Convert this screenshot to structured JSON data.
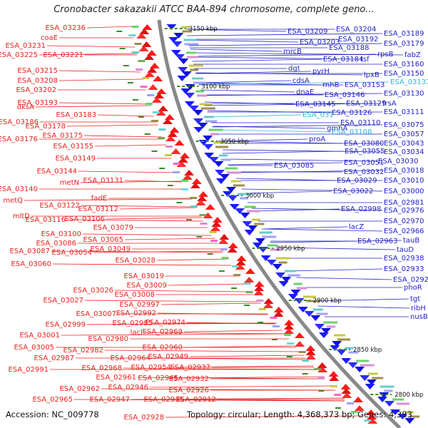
{
  "title": "Cronobacter sakazakii ATCC BAA-894 chromosome, complete geno...",
  "ticks": [
    "3150 kbp",
    "3100 kbp",
    "3050 kbp",
    "3000 kbp",
    "2950 kbp",
    "2900 kbp",
    "2850 kbp",
    "2800 kbp"
  ],
  "left_labels": [
    "ESA_03236",
    "coaE",
    "ESA_03231",
    "ESA_03225",
    "ESA_03221",
    "ESA_03215",
    "ESA_03208",
    "ESA_03202",
    "ESA_03193",
    "dksA",
    "ESA_03186",
    "ESA_03183",
    "ESA_03178",
    "ESA_03176",
    "ESA_03175",
    "ESA_03155",
    "ESA_03149",
    "ESA_03144",
    "metN",
    "ESA_03140",
    "ESA_03131",
    "metQ",
    "fadE",
    "ESA_03122",
    "ESA_03112",
    "mltD",
    "ESA_03116",
    "ESA_03106",
    "ESA_03079",
    "ESA_03100",
    "ESA_03065",
    "ESA_03086",
    "ESA_03087",
    "ESA_03054",
    "ESA_03049",
    "ESA_03060",
    "ESA_03028",
    "ESA_03019",
    "ESA_03026",
    "ESA_03009",
    "ESA_03008",
    "ESA_03027",
    "ESA_02997",
    "ESA_03007",
    "ESA_02992",
    "ESA_02999",
    "ESA_02985",
    "ESA_02974",
    "ESA_03001",
    "ESA_02980",
    "lacI",
    "ESA_02969",
    "ESA_03005",
    "ESA_02982",
    "ESA_02960",
    "ESA_02987",
    "ESA_02964",
    "ESA_02949",
    "ESA_02991",
    "ESA_02968",
    "ESA_02954",
    "ESA_02937",
    "ESA_02961",
    "ESA_02945",
    "ESA_02932",
    "ESA_02962",
    "ESA_02946",
    "ESA_02926",
    "ESA_02965",
    "ESA_02947",
    "ESA_02935",
    "ESA_02912",
    "ESA_02928"
  ],
  "right_labels": [
    "ESA_03209",
    "ESA_03204",
    "ESA_03189",
    "ESA_03203",
    "ESA_03192",
    "ESA_03179",
    "mrcB",
    "ESA_03188",
    "rpsB",
    "fabZ",
    "dgt",
    "ESA_03184",
    "tsf",
    "ESA_03160",
    "pyrH",
    "lpxB",
    "ESA_03150",
    "cdsA",
    "rnhB",
    "ESA_03153",
    "ESA_03137",
    "dnaE",
    "ESA_03146",
    "ESA_03130",
    "ESA_03145",
    "ESA_03129",
    "frsA",
    "ESA_03126",
    "ESA_03111",
    "ESA_031",
    "gmhA",
    "ESA_03110",
    "ESA_03075",
    "ESA_03108",
    "ESA_03057",
    "proA",
    "ESA_03080",
    "ESA_03043",
    "ESA_03055",
    "ESA_03034",
    "ESA_03085",
    "ESA_03051",
    "ESA_03030",
    "ESA_03032",
    "ESA_03018",
    "ESA_03029",
    "ESA_03010",
    "ESA_03022",
    "ESA_03000",
    "ESA_02981",
    "ESA_02998",
    "ESA_02976",
    "ESA_02970",
    "lacZ",
    "ESA_02966",
    "ESA_02963",
    "tauB",
    "tauD",
    "ESA_02938",
    "ESA_02933",
    "ESA_02920",
    "phoR",
    "tgt",
    "ribH",
    "nusB"
  ],
  "footer": {
    "accession": "Accession: NC_009778",
    "summary": "Topology: circular; Length: 4,368,373 bp; Genes: 4,383"
  },
  "colors": {
    "left_label": "#e8211d",
    "right_label": "#2323c8",
    "highlight_label": "#2fb6d8",
    "tick_mark": "#3a8a2a",
    "backbone": "#888888"
  }
}
